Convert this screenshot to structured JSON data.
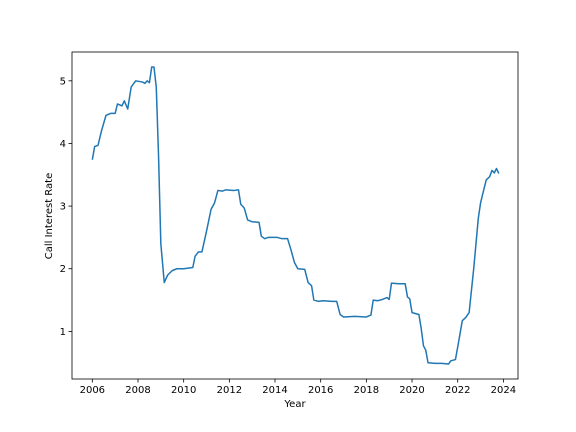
{
  "chart_data": {
    "type": "line",
    "x_label": "Year",
    "y_label": "Call Interest Rate",
    "series": [
      {
        "color": "#1f77b4",
        "x": [
          2006.0,
          2006.1,
          2006.25,
          2006.4,
          2006.6,
          2006.8,
          2007.0,
          2007.1,
          2007.3,
          2007.4,
          2007.55,
          2007.7,
          2007.9,
          2008.2,
          2008.3,
          2008.4,
          2008.5,
          2008.6,
          2008.7,
          2008.8,
          2008.9,
          2009.0,
          2009.15,
          2009.3,
          2009.5,
          2009.7,
          2010.0,
          2010.4,
          2010.5,
          2010.65,
          2010.8,
          2011.0,
          2011.2,
          2011.35,
          2011.5,
          2011.7,
          2011.85,
          2012.2,
          2012.4,
          2012.5,
          2012.65,
          2012.8,
          2013.0,
          2013.3,
          2013.4,
          2013.55,
          2013.7,
          2014.1,
          2014.3,
          2014.55,
          2014.7,
          2014.85,
          2015.0,
          2015.3,
          2015.45,
          2015.6,
          2015.7,
          2015.9,
          2016.1,
          2016.5,
          2016.7,
          2016.85,
          2017.0,
          2017.5,
          2018.0,
          2018.2,
          2018.3,
          2018.5,
          2018.7,
          2018.9,
          2019.0,
          2019.1,
          2019.4,
          2019.7,
          2019.8,
          2019.9,
          2020.0,
          2020.3,
          2020.4,
          2020.5,
          2020.6,
          2020.7,
          2021.0,
          2021.3,
          2021.6,
          2021.7,
          2021.9,
          2022.0,
          2022.2,
          2022.35,
          2022.5,
          2022.7,
          2022.9,
          2023.0,
          2023.1,
          2023.25,
          2023.4,
          2023.5,
          2023.6,
          2023.7,
          2023.8
        ],
        "values": [
          3.74,
          3.95,
          3.97,
          4.2,
          4.45,
          4.48,
          4.48,
          4.63,
          4.6,
          4.68,
          4.55,
          4.9,
          5.0,
          4.98,
          4.96,
          5.0,
          4.97,
          5.22,
          5.22,
          4.9,
          3.8,
          2.4,
          1.78,
          1.9,
          1.97,
          2.0,
          2.0,
          2.02,
          2.2,
          2.27,
          2.27,
          2.6,
          2.95,
          3.05,
          3.25,
          3.24,
          3.26,
          3.25,
          3.26,
          3.03,
          2.97,
          2.78,
          2.75,
          2.74,
          2.52,
          2.48,
          2.5,
          2.5,
          2.48,
          2.48,
          2.3,
          2.1,
          2.0,
          1.99,
          1.78,
          1.73,
          1.5,
          1.48,
          1.49,
          1.48,
          1.48,
          1.27,
          1.23,
          1.24,
          1.23,
          1.26,
          1.5,
          1.49,
          1.51,
          1.54,
          1.51,
          1.77,
          1.76,
          1.76,
          1.55,
          1.52,
          1.3,
          1.27,
          1.05,
          0.77,
          0.7,
          0.5,
          0.49,
          0.49,
          0.48,
          0.53,
          0.55,
          0.75,
          1.17,
          1.22,
          1.3,
          2.0,
          2.8,
          3.05,
          3.2,
          3.42,
          3.47,
          3.57,
          3.53,
          3.6,
          3.52
        ]
      }
    ],
    "xlim": [
      2005.11,
      2024.64
    ],
    "xticks": [
      2006,
      2008,
      2010,
      2012,
      2014,
      2016,
      2018,
      2020,
      2022,
      2024
    ],
    "ylim": [
      0.24,
      5.46
    ],
    "yticks": [
      1,
      2,
      3,
      4,
      5
    ]
  }
}
